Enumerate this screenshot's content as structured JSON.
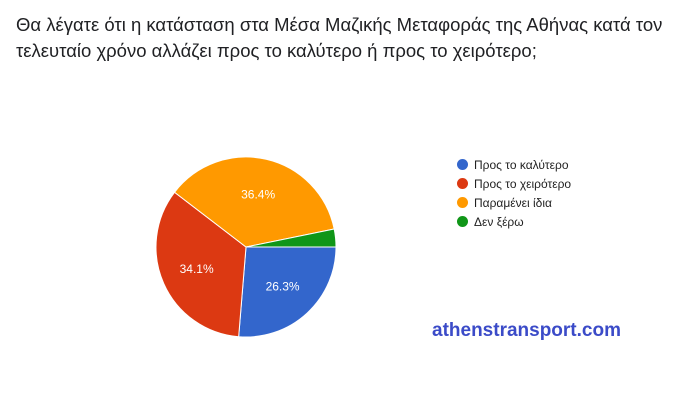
{
  "title": "Θα λέγατε ότι η κατάσταση στα Μέσα Μαζικής Μεταφοράς της Αθήνας κατά τον τελευταίο χρόνο αλλάζει προς το καλύτερο ή προς το χειρότερο;",
  "watermark": "athenstransport.com",
  "chart_data": {
    "type": "pie",
    "legend_position": "right",
    "slices": [
      {
        "label": "Προς το καλύτερο",
        "value": 26.3,
        "data_label": "26.3%",
        "color": "#3366cc"
      },
      {
        "label": "Προς το χειρότερο",
        "value": 34.1,
        "data_label": "34.1%",
        "color": "#dc3912"
      },
      {
        "label": "Παραμένει ίδια",
        "value": 36.4,
        "data_label": "36.4%",
        "color": "#ff9900"
      },
      {
        "label": "Δεν ξέρω",
        "value": 3.2,
        "data_label": "",
        "color": "#109618"
      }
    ]
  }
}
